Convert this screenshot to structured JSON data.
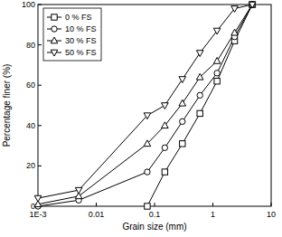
{
  "chart_data": {
    "type": "line",
    "x_label": "Grain size (mm)",
    "y_label": "Percentage finer (%)",
    "log": "x",
    "xlim": [
      0.001,
      10
    ],
    "xticks": [
      {
        "value": 0.001,
        "label": "1E-3"
      },
      0.01,
      0.1,
      1,
      10
    ],
    "ylim": [
      0,
      100
    ],
    "yticks": [
      0,
      20,
      40,
      60,
      80,
      100
    ],
    "grid": false,
    "legend": "upper left",
    "series": [
      {
        "name": "0 % FS",
        "color": "#000000",
        "marker": "square",
        "line_style": "solid",
        "x": [
          0.075,
          0.15,
          0.3,
          0.6,
          1.18,
          2.36,
          4.75
        ],
        "values": [
          0,
          17,
          31,
          46,
          62,
          82,
          100
        ]
      },
      {
        "name": "10 % FS",
        "color": "#000000",
        "marker": "circle",
        "line_style": "solid",
        "x": [
          0.001,
          0.005,
          0.075,
          0.15,
          0.3,
          0.6,
          1.18,
          2.36,
          4.75
        ],
        "values": [
          0,
          3,
          17,
          29,
          42,
          55,
          66,
          84,
          100
        ]
      },
      {
        "name": "30 % FS",
        "color": "#000000",
        "marker": "triangle",
        "line_style": "solid",
        "x": [
          0.001,
          0.005,
          0.075,
          0.15,
          0.3,
          0.6,
          1.18,
          2.36,
          4.75
        ],
        "values": [
          1,
          5,
          31,
          40,
          51,
          64,
          72,
          86,
          100
        ]
      },
      {
        "name": "50 % FS",
        "color": "#000000",
        "marker": "triangle-down",
        "line_style": "solid",
        "x": [
          0.001,
          0.005,
          0.075,
          0.15,
          0.3,
          0.6,
          1.18,
          2.36,
          4.75
        ],
        "values": [
          4,
          8,
          45,
          50,
          63,
          76,
          87,
          98,
          100
        ]
      }
    ]
  }
}
